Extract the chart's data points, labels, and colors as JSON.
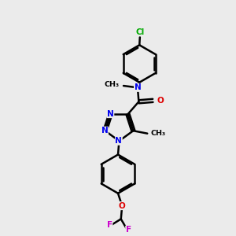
{
  "bg_color": "#ebebeb",
  "bond_color": "#000000",
  "bond_width": 1.8,
  "figsize": [
    3.0,
    3.0
  ],
  "dpi": 100,
  "atom_colors": {
    "N": "#0000ee",
    "O": "#dd0000",
    "F": "#cc00cc",
    "Cl": "#00aa00",
    "C": "#000000"
  }
}
